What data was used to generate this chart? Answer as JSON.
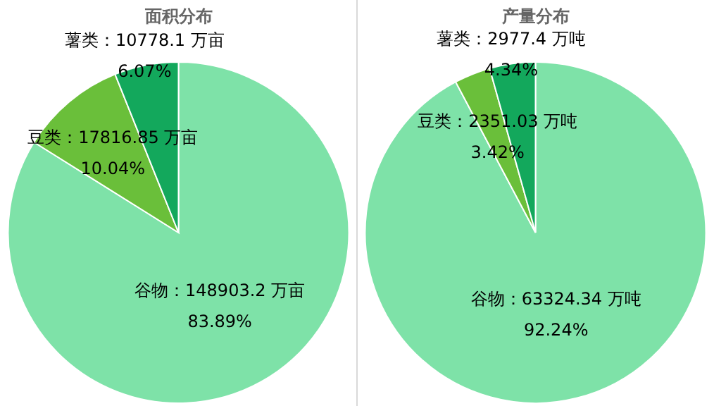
{
  "chart_data": [
    {
      "type": "pie",
      "title": "面积分布",
      "categories": [
        "谷物",
        "豆类",
        "薯类"
      ],
      "values": [
        148903.2,
        17816.85,
        10778.1
      ],
      "colors": [
        "#7ee2a8",
        "#6abf3a",
        "#13a85c"
      ],
      "value_labels": [
        "148903.2 万亩\n83.89%",
        "17816.85 万亩\n10.04%",
        "10778.1 万亩\n6.07%"
      ]
    },
    {
      "type": "pie",
      "title": "产量分布",
      "categories": [
        "谷物",
        "豆类",
        "薯类"
      ],
      "values": [
        63324.34,
        2351.03,
        2977.4
      ],
      "colors": [
        "#7ee2a8",
        "#6abf3a",
        "#13a85c"
      ],
      "value_labels": [
        "63324.34 万吨\n92.24%",
        "2351.03 万吨\n3.42%",
        "2977.4 万吨\n4.34%"
      ]
    }
  ]
}
